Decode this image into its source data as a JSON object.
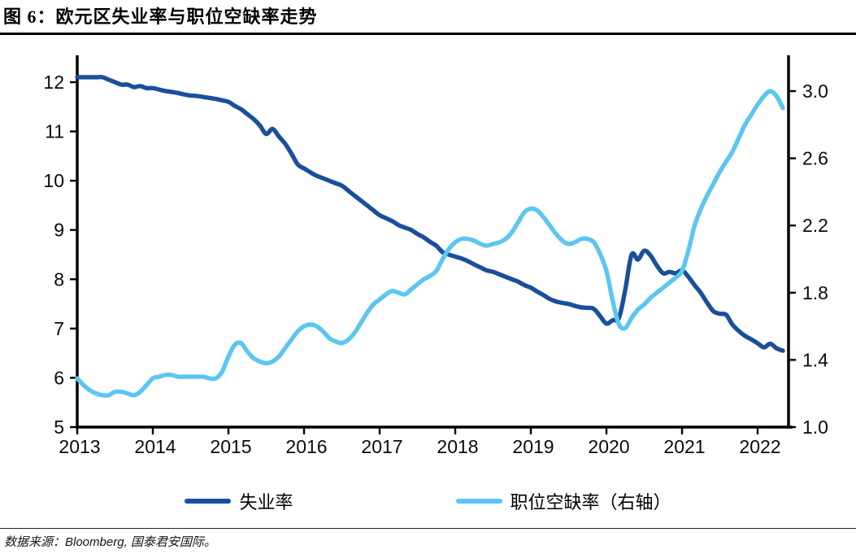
{
  "figure": {
    "title": "图 6：欧元区失业率与职位空缺率走势"
  },
  "source": {
    "text": "数据来源：Bloomberg, 国泰君安国际。"
  },
  "legend": [
    {
      "label": "失业率",
      "color": "#1A4F9B"
    },
    {
      "label": "职位空缺率（右轴）",
      "color": "#5BC6F1"
    }
  ],
  "chart_data": {
    "type": "line",
    "title": "欧元区失业率与职位空缺率走势",
    "x_start": "2013-01",
    "x_frequency": "monthly",
    "x_tick_labels": [
      "2013",
      "2014",
      "2015",
      "2016",
      "2017",
      "2018",
      "2019",
      "2020",
      "2021",
      "2022"
    ],
    "left_axis": {
      "range": [
        5,
        12
      ],
      "ticks": [
        12,
        11,
        10,
        9,
        8,
        7,
        6,
        5
      ]
    },
    "right_axis": {
      "range": [
        1.0,
        3.0
      ],
      "ticks": [
        "3.0",
        "2.6",
        "2.2",
        "1.8",
        "1.4",
        "1.0"
      ]
    },
    "grid": false,
    "legend_position": "bottom",
    "series": [
      {
        "name": "失业率",
        "axis": "left",
        "color": "#1A4F9B",
        "values": [
          12.1,
          12.1,
          12.1,
          12.1,
          12.1,
          12.05,
          12.0,
          11.95,
          11.95,
          11.9,
          11.92,
          11.88,
          11.88,
          11.85,
          11.82,
          11.8,
          11.78,
          11.75,
          11.73,
          11.72,
          11.7,
          11.68,
          11.66,
          11.63,
          11.6,
          11.52,
          11.45,
          11.35,
          11.25,
          11.12,
          10.95,
          11.05,
          10.9,
          10.75,
          10.55,
          10.33,
          10.25,
          10.17,
          10.1,
          10.05,
          10.0,
          9.95,
          9.9,
          9.8,
          9.7,
          9.6,
          9.5,
          9.4,
          9.3,
          9.24,
          9.18,
          9.1,
          9.05,
          9.0,
          8.92,
          8.85,
          8.76,
          8.68,
          8.55,
          8.5,
          8.46,
          8.42,
          8.37,
          8.3,
          8.24,
          8.18,
          8.15,
          8.1,
          8.05,
          8.0,
          7.95,
          7.88,
          7.83,
          7.75,
          7.68,
          7.6,
          7.55,
          7.52,
          7.5,
          7.46,
          7.43,
          7.42,
          7.4,
          7.25,
          7.1,
          7.17,
          7.22,
          7.8,
          8.5,
          8.4,
          8.58,
          8.48,
          8.28,
          8.12,
          8.15,
          8.12,
          8.18,
          8.05,
          7.88,
          7.72,
          7.52,
          7.35,
          7.3,
          7.28,
          7.08,
          6.95,
          6.85,
          6.78,
          6.7,
          6.62,
          6.69,
          6.6,
          6.55
        ]
      },
      {
        "name": "职位空缺率（右轴）",
        "axis": "right",
        "color": "#5BC6F1",
        "values": [
          1.29,
          1.25,
          1.22,
          1.2,
          1.19,
          1.19,
          1.21,
          1.21,
          1.2,
          1.19,
          1.21,
          1.25,
          1.29,
          1.3,
          1.31,
          1.31,
          1.3,
          1.3,
          1.3,
          1.3,
          1.3,
          1.29,
          1.29,
          1.33,
          1.42,
          1.49,
          1.5,
          1.45,
          1.41,
          1.39,
          1.38,
          1.39,
          1.42,
          1.47,
          1.52,
          1.57,
          1.6,
          1.61,
          1.6,
          1.57,
          1.53,
          1.51,
          1.5,
          1.52,
          1.56,
          1.62,
          1.68,
          1.73,
          1.76,
          1.79,
          1.81,
          1.8,
          1.79,
          1.82,
          1.85,
          1.88,
          1.9,
          1.93,
          2.0,
          2.06,
          2.1,
          2.12,
          2.12,
          2.11,
          2.09,
          2.08,
          2.09,
          2.1,
          2.12,
          2.16,
          2.22,
          2.28,
          2.3,
          2.29,
          2.25,
          2.2,
          2.15,
          2.11,
          2.09,
          2.1,
          2.12,
          2.12,
          2.1,
          2.03,
          1.93,
          1.75,
          1.61,
          1.59,
          1.65,
          1.7,
          1.73,
          1.77,
          1.8,
          1.83,
          1.86,
          1.89,
          1.93,
          2.05,
          2.2,
          2.3,
          2.38,
          2.45,
          2.52,
          2.58,
          2.64,
          2.72,
          2.8,
          2.86,
          2.92,
          2.97,
          3.0,
          2.97,
          2.9
        ]
      }
    ]
  }
}
